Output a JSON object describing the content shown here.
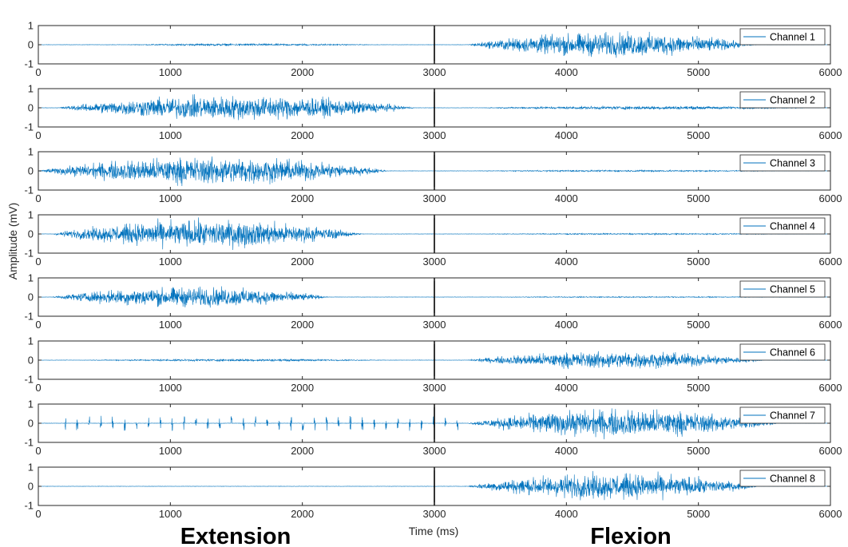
{
  "chart_data": {
    "type": "line",
    "xlabel": "Time (ms)",
    "ylabel": "Amplitude (mV)",
    "xlim": [
      0,
      6000
    ],
    "ylim": [
      -1,
      1
    ],
    "xticks": [
      "0",
      "1000",
      "2000",
      "3000",
      "4000",
      "5000",
      "6000"
    ],
    "yticks": [
      "-1",
      "0",
      "1"
    ],
    "grid": false,
    "legend_placement": "top-right",
    "color": "#0072BD",
    "divider_x": 3000,
    "phase_labels": [
      "Extension",
      "Flexion"
    ],
    "series": [
      {
        "name": "Channel 1",
        "bursts": [
          {
            "start": 600,
            "end": 2600,
            "peak": 0.08
          },
          {
            "start": 3250,
            "end": 5450,
            "peak": 0.85
          }
        ]
      },
      {
        "name": "Channel 2",
        "bursts": [
          {
            "start": 150,
            "end": 2850,
            "peak": 0.85
          },
          {
            "start": 3300,
            "end": 5900,
            "peak": 0.12
          }
        ]
      },
      {
        "name": "Channel 3",
        "bursts": [
          {
            "start": 0,
            "end": 2650,
            "peak": 0.95
          },
          {
            "start": 3200,
            "end": 5800,
            "peak": 0.06
          }
        ]
      },
      {
        "name": "Channel 4",
        "bursts": [
          {
            "start": 100,
            "end": 2450,
            "peak": 0.95
          },
          {
            "start": 3200,
            "end": 5900,
            "peak": 0.05
          }
        ]
      },
      {
        "name": "Channel 5",
        "bursts": [
          {
            "start": 100,
            "end": 2200,
            "peak": 0.7
          },
          {
            "start": 3200,
            "end": 5900,
            "peak": 0.04
          }
        ]
      },
      {
        "name": "Channel 6",
        "bursts": [
          {
            "start": 300,
            "end": 2700,
            "peak": 0.08
          },
          {
            "start": 3250,
            "end": 5500,
            "peak": 0.6
          }
        ]
      },
      {
        "name": "Channel 7",
        "bursts": [
          {
            "start": 3250,
            "end": 5600,
            "peak": 0.95
          }
        ],
        "spikes": [
          {
            "start": 200,
            "end": 3200,
            "peak": 0.4
          }
        ]
      },
      {
        "name": "Channel 8",
        "bursts": [
          {
            "start": 3250,
            "end": 5450,
            "peak": 0.9
          }
        ]
      }
    ]
  }
}
